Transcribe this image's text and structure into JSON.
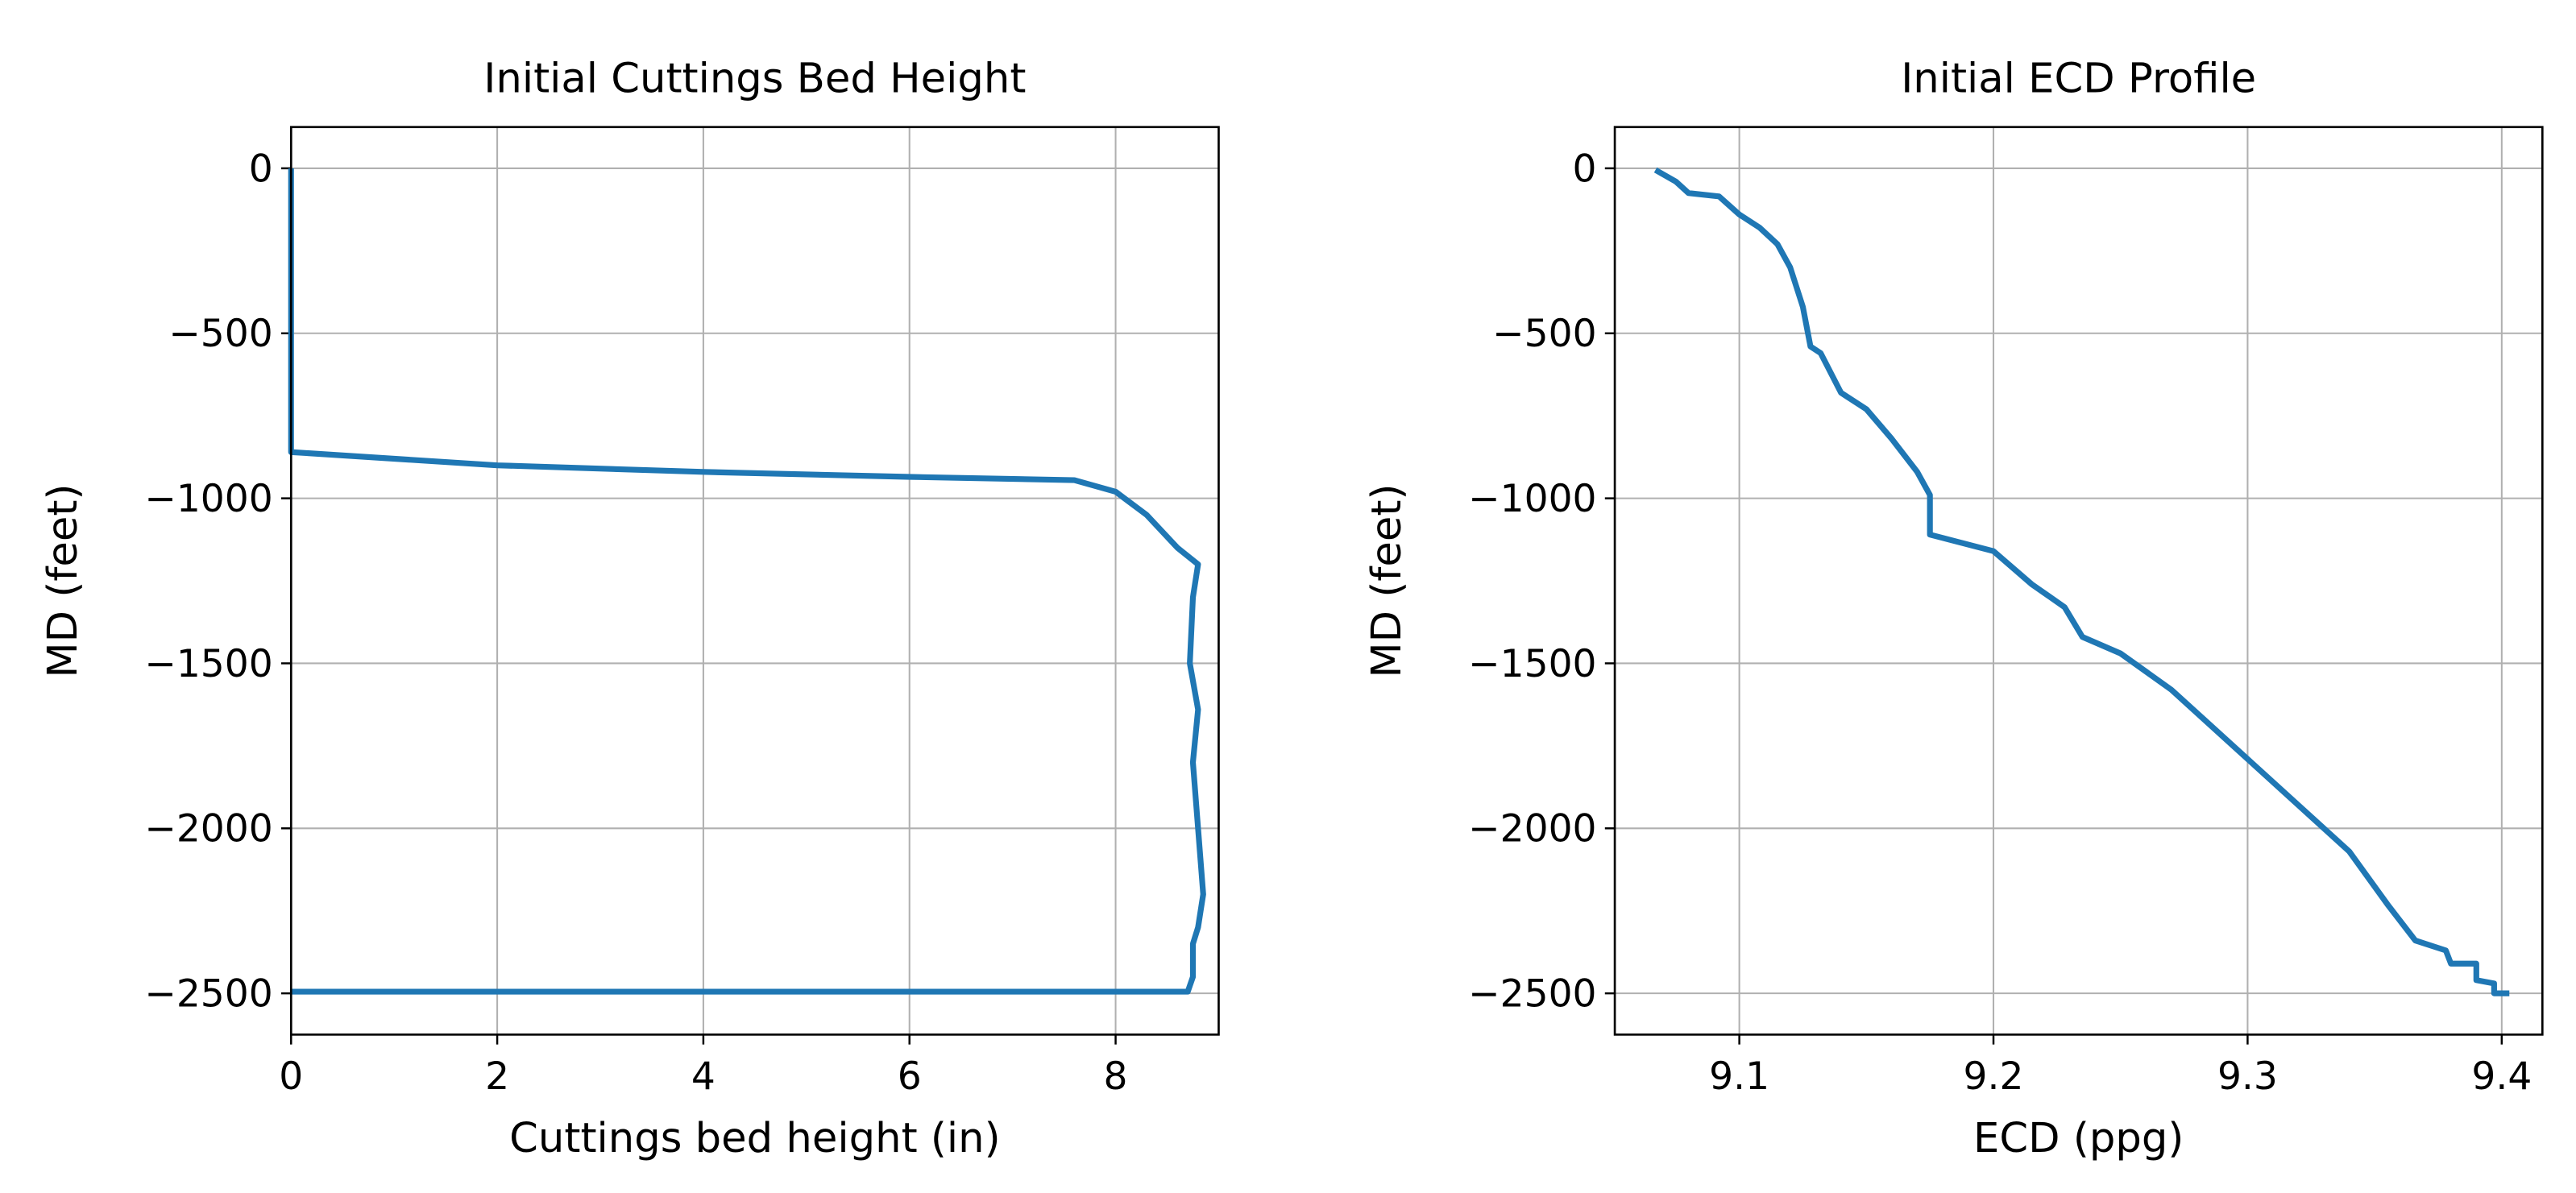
{
  "chart_data": [
    {
      "type": "line",
      "title": "Initial Cuttings Bed Height",
      "xlabel": "Cuttings bed height (in)",
      "ylabel": "MD (feet)",
      "x": [
        0,
        0,
        2,
        4,
        6,
        7.6,
        8.0,
        8.3,
        8.6,
        8.8,
        8.75,
        8.72,
        8.8,
        8.75,
        8.8,
        8.85,
        8.8,
        8.75,
        8.75,
        8.7,
        0
      ],
      "values": [
        0,
        -860,
        -900,
        -920,
        -935,
        -945,
        -980,
        -1050,
        -1150,
        -1200,
        -1300,
        -1500,
        -1640,
        -1800,
        -2000,
        -2200,
        -2300,
        -2350,
        -2450,
        -2495,
        -2495
      ],
      "color": "#1f77b4",
      "xlim": [
        0,
        9.0
      ],
      "xticks": [
        0,
        2,
        4,
        6,
        8
      ],
      "ylim": [
        -2625,
        125
      ],
      "yticks": [
        0,
        {
          "value": -500,
          "label": "−500"
        },
        {
          "value": -1000,
          "label": "−1000"
        },
        {
          "value": -1500,
          "label": "−1500"
        },
        {
          "value": -2000,
          "label": "−2000"
        },
        {
          "value": -2500,
          "label": "−2500"
        }
      ],
      "grid": true
    },
    {
      "type": "line",
      "title": "Initial ECD Profile",
      "xlabel": "ECD (ppg)",
      "ylabel": "MD (feet)",
      "x": [
        9.067,
        9.075,
        9.08,
        9.092,
        9.1,
        9.108,
        9.115,
        9.12,
        9.125,
        9.128,
        9.132,
        9.14,
        9.15,
        9.16,
        9.17,
        9.175,
        9.175,
        9.2,
        9.215,
        9.228,
        9.235,
        9.25,
        9.27,
        9.3,
        9.32,
        9.34,
        9.355,
        9.366,
        9.378,
        9.38,
        9.39,
        9.39,
        9.397,
        9.397,
        9.403
      ],
      "values": [
        -5,
        -40,
        -75,
        -85,
        -140,
        -180,
        -230,
        -300,
        -420,
        -540,
        -560,
        -680,
        -730,
        -820,
        -920,
        -990,
        -1110,
        -1160,
        -1260,
        -1330,
        -1420,
        -1470,
        -1580,
        -1790,
        -1930,
        -2070,
        -2230,
        -2340,
        -2370,
        -2410,
        -2410,
        -2460,
        -2470,
        -2500,
        -2500
      ],
      "color": "#1f77b4",
      "xlim": [
        9.051,
        9.416
      ],
      "xticks": [
        9.1,
        9.2,
        9.3,
        9.4
      ],
      "ylim": [
        -2625,
        125
      ],
      "yticks": [
        0,
        {
          "value": -500,
          "label": "−500"
        },
        {
          "value": -1000,
          "label": "−1000"
        },
        {
          "value": -1500,
          "label": "−1500"
        },
        {
          "value": -2000,
          "label": "−2000"
        },
        {
          "value": -2500,
          "label": "−2500"
        }
      ],
      "grid": true
    }
  ]
}
